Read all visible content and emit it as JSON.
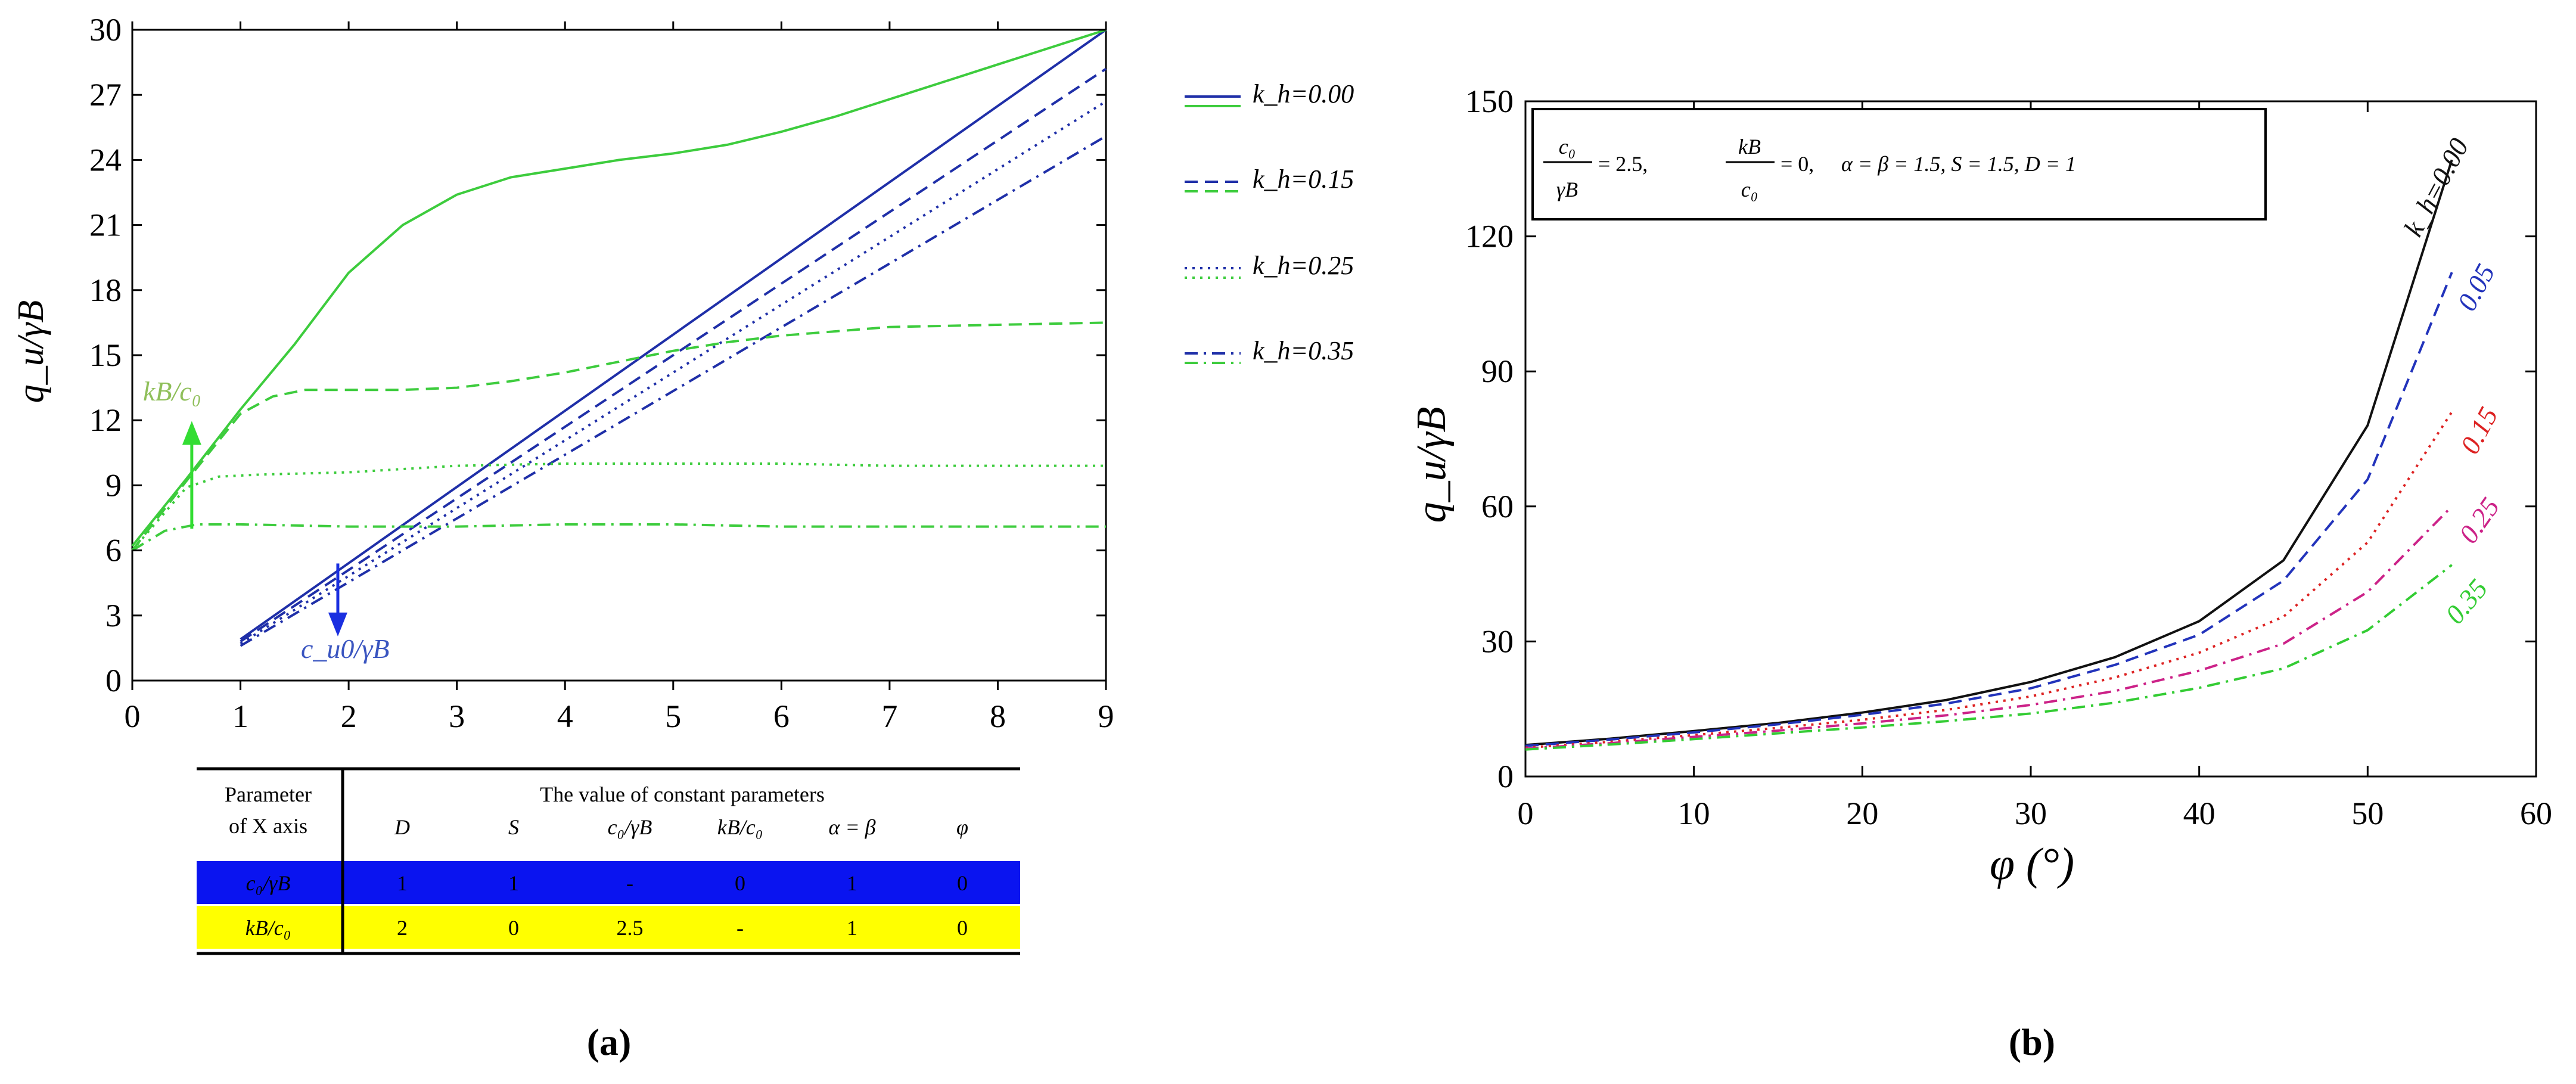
{
  "chart_data": [
    {
      "panel": "(a)",
      "type": "line",
      "xlabel": "",
      "ylabel": "q_u/γB",
      "xlim": [
        0,
        9
      ],
      "ylim": [
        0,
        30
      ],
      "xticks": [
        0,
        1,
        2,
        3,
        4,
        5,
        6,
        7,
        8,
        9
      ],
      "yticks": [
        0,
        3,
        6,
        9,
        12,
        15,
        18,
        21,
        24,
        27,
        30
      ],
      "legend": [
        "k_h=0.00",
        "k_h=0.15",
        "k_h=0.25",
        "k_h=0.35"
      ],
      "series": [
        {
          "name": "k_h=0.00",
          "group": "c0/γB",
          "color": "#1f2fa8",
          "dash": "solid",
          "x": [
            1.0,
            9.0
          ],
          "y": [
            1.9,
            30.0
          ]
        },
        {
          "name": "k_h=0.15",
          "group": "c0/γB",
          "color": "#1f2fa8",
          "dash": "dashed",
          "x": [
            1.0,
            9.0
          ],
          "y": [
            1.8,
            28.2
          ]
        },
        {
          "name": "k_h=0.25",
          "group": "c0/γB",
          "color": "#1f2fa8",
          "dash": "dotted",
          "x": [
            1.0,
            9.0
          ],
          "y": [
            1.7,
            26.7
          ]
        },
        {
          "name": "k_h=0.35",
          "group": "c0/γB",
          "color": "#1f2fa8",
          "dash": "dashdot",
          "x": [
            1.0,
            9.0
          ],
          "y": [
            1.6,
            25.1
          ]
        },
        {
          "name": "k_h=0.00",
          "group": "kB/c0",
          "color": "#3dcc3d",
          "dash": "solid",
          "x": [
            0,
            0.5,
            1.0,
            1.5,
            2.0,
            2.5,
            3.0,
            3.5,
            4.0,
            4.5,
            5.0,
            5.5,
            6.0,
            6.5,
            7.0,
            7.5,
            8.0,
            8.5,
            9.0
          ],
          "y": [
            6.2,
            9.3,
            12.5,
            15.5,
            18.8,
            21.0,
            22.4,
            23.2,
            23.6,
            24.0,
            24.3,
            24.7,
            25.3,
            26.0,
            26.8,
            27.6,
            28.4,
            29.2,
            30.0
          ]
        },
        {
          "name": "k_h=0.15",
          "group": "kB/c0",
          "color": "#3dcc3d",
          "dash": "dashed",
          "x": [
            0,
            0.5,
            1.0,
            1.3,
            1.6,
            2.0,
            2.5,
            3.0,
            3.5,
            4.0,
            4.5,
            5.0,
            5.5,
            6.0,
            6.5,
            7.0,
            8.0,
            9.0
          ],
          "y": [
            6.0,
            9.2,
            12.3,
            13.1,
            13.4,
            13.4,
            13.4,
            13.5,
            13.8,
            14.2,
            14.7,
            15.2,
            15.6,
            15.9,
            16.1,
            16.3,
            16.4,
            16.5
          ]
        },
        {
          "name": "k_h=0.25",
          "group": "kB/c0",
          "color": "#3dcc3d",
          "dash": "dotted",
          "x": [
            0,
            0.5,
            0.8,
            1.2,
            2.0,
            3.0,
            4.0,
            5.0,
            6.0,
            7.0,
            8.0,
            9.0
          ],
          "y": [
            6.0,
            8.9,
            9.4,
            9.5,
            9.6,
            9.9,
            10.0,
            10.0,
            10.0,
            9.9,
            9.9,
            9.9
          ]
        },
        {
          "name": "k_h=0.35",
          "group": "kB/c0",
          "color": "#3dcc3d",
          "dash": "dashdot",
          "x": [
            0,
            0.3,
            0.6,
            1.0,
            2.0,
            3.0,
            4.0,
            5.0,
            6.0,
            7.0,
            8.0,
            9.0
          ],
          "y": [
            6.0,
            6.9,
            7.2,
            7.2,
            7.1,
            7.1,
            7.2,
            7.2,
            7.1,
            7.1,
            7.1,
            7.1
          ]
        }
      ],
      "annotations": [
        {
          "text": "kB/c₀",
          "color": "#8fbf5a",
          "arrow": "up",
          "x": 0.55,
          "from": 7.0,
          "to": 11.8
        },
        {
          "text": "c_u0/γB",
          "color": "#3a55c0",
          "arrow": "down",
          "x": 1.9,
          "from": 5.4,
          "to": 2.2
        }
      ],
      "table": {
        "header_left": [
          "Parameter",
          "of X axis"
        ],
        "header_right": "The value of constant parameters",
        "columns": [
          "D",
          "S",
          "c₀/γB",
          "kB/c₀",
          "α = β",
          "φ"
        ],
        "rows": [
          {
            "param": "c₀/γB",
            "values": [
              "1",
              "1",
              "-",
              "0",
              "1",
              "0"
            ],
            "color": "#0a14f0"
          },
          {
            "param": "kB/c₀",
            "values": [
              "2",
              "0",
              "2.5",
              "-",
              "1",
              "0"
            ],
            "color": "#ffff00"
          }
        ]
      },
      "caption": "(a)"
    },
    {
      "panel": "(b)",
      "type": "line",
      "xlabel": "φ (°)",
      "ylabel": "q_u/γB",
      "xlim": [
        0,
        60
      ],
      "ylim": [
        0,
        150
      ],
      "xticks": [
        0,
        10,
        20,
        30,
        40,
        50,
        60
      ],
      "yticks": [
        0,
        30,
        60,
        90,
        120,
        150
      ],
      "parameter_box": {
        "c0_gammaB": "= 2.5,",
        "kB_c0": "= 0,",
        "rest": "α = β = 1.5,  S = 1.5,  D = 1"
      },
      "x": [
        0,
        5,
        10,
        15,
        20,
        25,
        30,
        35,
        40,
        45,
        50,
        55
      ],
      "series": [
        {
          "name": "k_h=0.00",
          "label": "k_h=0.00",
          "color": "#111111",
          "dash": "solid",
          "y": [
            7.0,
            8.4,
            10.1,
            11.9,
            14.2,
            17.0,
            21.0,
            26.5,
            34.5,
            48.0,
            78.0,
            137.0
          ]
        },
        {
          "name": "0.05",
          "label": "0.05",
          "color": "#2233bb",
          "dash": "dashed",
          "y": [
            6.8,
            8.2,
            9.8,
            11.6,
            13.7,
            16.2,
            19.6,
            24.8,
            31.5,
            43.5,
            66.0,
            112.0
          ]
        },
        {
          "name": "0.15",
          "label": "0.15",
          "color": "#dd2222",
          "dash": "dotted",
          "y": [
            6.4,
            7.7,
            9.2,
            10.8,
            12.6,
            14.8,
            17.8,
            22.0,
            27.5,
            35.5,
            52.0,
            81.0
          ]
        },
        {
          "name": "0.25",
          "label": "0.25",
          "color": "#cc2288",
          "dash": "dashdot",
          "y": [
            6.2,
            7.4,
            8.8,
            10.2,
            11.8,
            13.6,
            15.9,
            19.0,
            23.5,
            29.5,
            41.0,
            60.0
          ]
        },
        {
          "name": "0.35",
          "label": "0.35",
          "color": "#33cc33",
          "dash": "dashdot",
          "y": [
            6.0,
            7.1,
            8.3,
            9.6,
            10.9,
            12.3,
            14.0,
            16.4,
            19.7,
            24.0,
            32.5,
            47.0
          ]
        }
      ],
      "caption": "(b)"
    }
  ]
}
